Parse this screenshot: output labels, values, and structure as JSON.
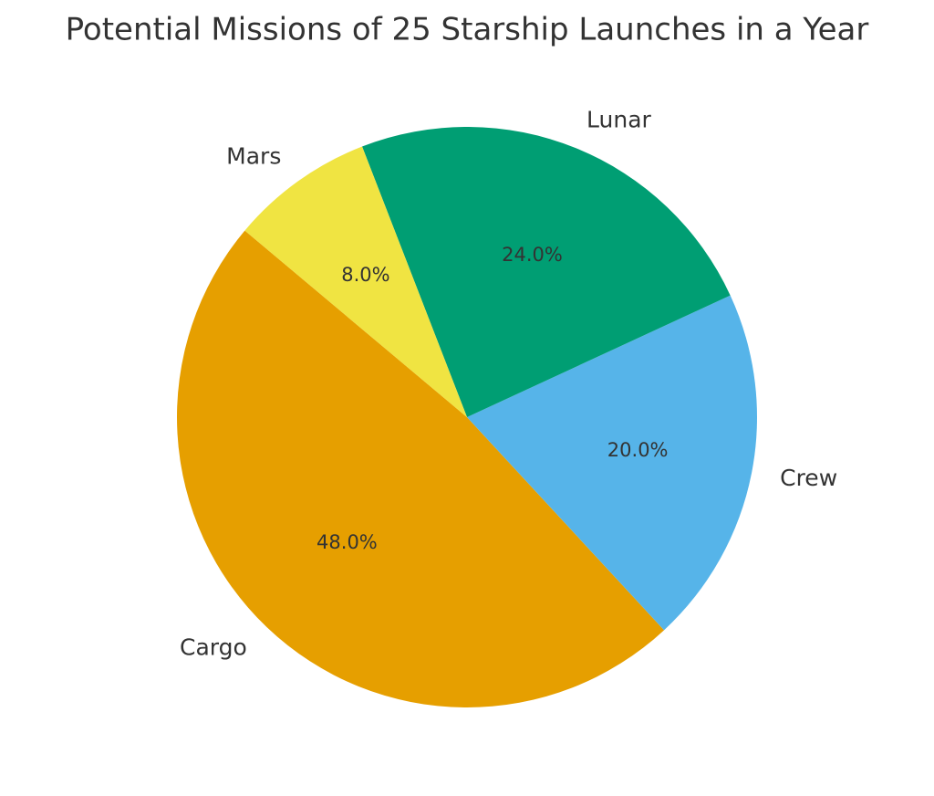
{
  "chart_data": {
    "type": "pie",
    "title": "Potential Missions of 25 Starship Launches in a Year",
    "categories": [
      "Cargo",
      "Crew",
      "Lunar",
      "Mars"
    ],
    "values": [
      48,
      20,
      24,
      8
    ],
    "value_labels": [
      "48.0%",
      "20.0%",
      "24.0%",
      "8.0%"
    ],
    "colors": [
      "#E69F00",
      "#56B4E9",
      "#009E73",
      "#F0E442"
    ]
  }
}
